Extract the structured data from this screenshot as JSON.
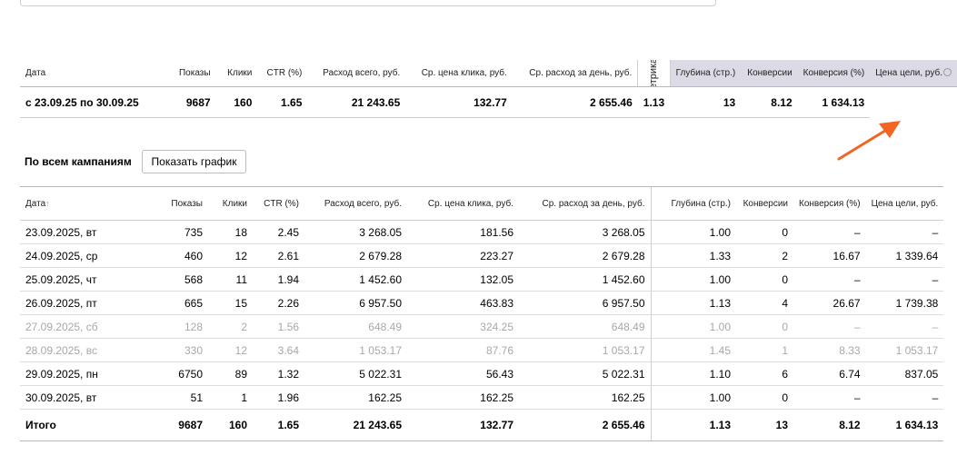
{
  "columns": {
    "date": "Дата",
    "impressions": "Показы",
    "clicks": "Клики",
    "ctr": "CTR (%)",
    "spend": "Расход всего, руб.",
    "cpc": "Ср. цена клика, руб.",
    "daily_spend": "Ср. расход за день, руб.",
    "depth": "Глубина (стр.)",
    "conversions": "Конверсии",
    "conv_rate": "Конверсия (%)",
    "goal_cost": "Цена цели, руб."
  },
  "metrika_tab": "Метрика »",
  "summary": {
    "date": "с 23.09.25 по 30.09.25",
    "impressions": "9687",
    "clicks": "160",
    "ctr": "1.65",
    "spend": "21 243.65",
    "cpc": "132.77",
    "daily_spend": "2 655.46",
    "depth": "1.13",
    "conversions": "13",
    "conv_rate": "8.12",
    "goal_cost": "1 634.13"
  },
  "section_title": "По всем кампаниям",
  "show_chart_button": "Показать график",
  "sort_indicator": "↑",
  "rows": [
    {
      "date": "23.09.2025, вт",
      "impressions": "735",
      "clicks": "18",
      "ctr": "2.45",
      "spend": "3 268.05",
      "cpc": "181.56",
      "daily_spend": "3 268.05",
      "depth": "1.00",
      "conversions": "0",
      "conv_rate": "–",
      "goal_cost": "–"
    },
    {
      "date": "24.09.2025, ср",
      "impressions": "460",
      "clicks": "12",
      "ctr": "2.61",
      "spend": "2 679.28",
      "cpc": "223.27",
      "daily_spend": "2 679.28",
      "depth": "1.33",
      "conversions": "2",
      "conv_rate": "16.67",
      "goal_cost": "1 339.64"
    },
    {
      "date": "25.09.2025, чт",
      "impressions": "568",
      "clicks": "11",
      "ctr": "1.94",
      "spend": "1 452.60",
      "cpc": "132.05",
      "daily_spend": "1 452.60",
      "depth": "1.00",
      "conversions": "0",
      "conv_rate": "–",
      "goal_cost": "–"
    },
    {
      "date": "26.09.2025, пт",
      "impressions": "665",
      "clicks": "15",
      "ctr": "2.26",
      "spend": "6 957.50",
      "cpc": "463.83",
      "daily_spend": "6 957.50",
      "depth": "1.13",
      "conversions": "4",
      "conv_rate": "26.67",
      "goal_cost": "1 739.38"
    },
    {
      "date": "27.09.2025, сб",
      "impressions": "128",
      "clicks": "2",
      "ctr": "1.56",
      "spend": "648.49",
      "cpc": "324.25",
      "daily_spend": "648.49",
      "depth": "1.00",
      "conversions": "0",
      "conv_rate": "–",
      "goal_cost": "–"
    },
    {
      "date": "28.09.2025, вс",
      "impressions": "330",
      "clicks": "12",
      "ctr": "3.64",
      "spend": "1 053.17",
      "cpc": "87.76",
      "daily_spend": "1 053.17",
      "depth": "1.45",
      "conversions": "1",
      "conv_rate": "8.33",
      "goal_cost": "1 053.17"
    },
    {
      "date": "29.09.2025, пн",
      "impressions": "6750",
      "clicks": "89",
      "ctr": "1.32",
      "spend": "5 022.31",
      "cpc": "56.43",
      "daily_spend": "5 022.31",
      "depth": "1.10",
      "conversions": "6",
      "conv_rate": "6.74",
      "goal_cost": "837.05"
    },
    {
      "date": "30.09.2025, вт",
      "impressions": "51",
      "clicks": "1",
      "ctr": "1.96",
      "spend": "162.25",
      "cpc": "162.25",
      "daily_spend": "162.25",
      "depth": "1.00",
      "conversions": "0",
      "conv_rate": "–",
      "goal_cost": "–"
    }
  ],
  "total": {
    "label": "Итого",
    "impressions": "9687",
    "clicks": "160",
    "ctr": "1.65",
    "spend": "21 243.65",
    "cpc": "132.77",
    "daily_spend": "2 655.46",
    "depth": "1.13",
    "conversions": "13",
    "conv_rate": "8.12",
    "goal_cost": "1 634.13"
  },
  "colors": {
    "arrow": "#f26522",
    "metrika_header_bg": "#dcdae5",
    "weekend_text": "#a8a8a8"
  }
}
